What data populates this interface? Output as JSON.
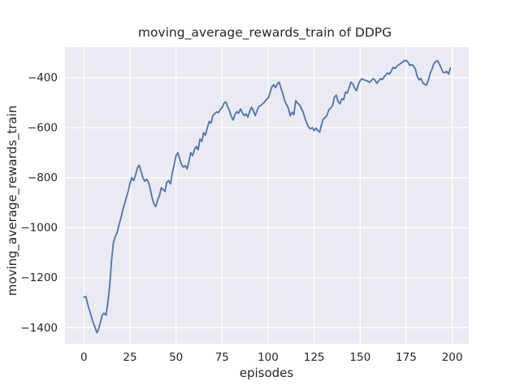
{
  "figure": {
    "title": "moving_average_rewards_train of DDPG",
    "xlabel": "episodes",
    "ylabel": "moving_average_rewards_train"
  },
  "colors": {
    "line": "#4c72b0",
    "plot_background": "#eaeaf2",
    "grid": "#ffffff",
    "text": "#262626",
    "figure_background": "#ffffff"
  },
  "chart_data": {
    "type": "line",
    "title": "moving_average_rewards_train of DDPG",
    "xlabel": "episodes",
    "ylabel": "moving_average_rewards_train",
    "grid": true,
    "legend": "none",
    "style": "seaborn-darkgrid",
    "x_ticks": [
      0,
      25,
      50,
      75,
      100,
      125,
      150,
      175,
      200
    ],
    "y_ticks": [
      -400,
      -600,
      -800,
      -1000,
      -1200,
      -1400
    ],
    "xlim": [
      -10.3,
      209.0
    ],
    "ylim": [
      -1464,
      -278
    ],
    "series": [
      {
        "name": "moving_average_rewards_train",
        "x_start": 0,
        "x_step": 1,
        "values": [
          -1278,
          -1275,
          -1305,
          -1330,
          -1355,
          -1380,
          -1398,
          -1420,
          -1405,
          -1376,
          -1348,
          -1342,
          -1350,
          -1300,
          -1230,
          -1130,
          -1060,
          -1035,
          -1020,
          -990,
          -963,
          -932,
          -905,
          -880,
          -855,
          -822,
          -800,
          -812,
          -790,
          -762,
          -750,
          -775,
          -800,
          -815,
          -806,
          -818,
          -845,
          -880,
          -905,
          -916,
          -890,
          -872,
          -840,
          -848,
          -855,
          -818,
          -812,
          -825,
          -780,
          -748,
          -712,
          -700,
          -725,
          -748,
          -758,
          -752,
          -765,
          -735,
          -700,
          -712,
          -688,
          -675,
          -688,
          -646,
          -655,
          -620,
          -630,
          -600,
          -575,
          -582,
          -552,
          -545,
          -537,
          -540,
          -528,
          -520,
          -502,
          -497,
          -515,
          -532,
          -555,
          -570,
          -548,
          -536,
          -542,
          -525,
          -540,
          -552,
          -545,
          -558,
          -535,
          -518,
          -532,
          -552,
          -532,
          -515,
          -512,
          -505,
          -498,
          -488,
          -482,
          -462,
          -438,
          -428,
          -440,
          -425,
          -418,
          -442,
          -465,
          -492,
          -508,
          -522,
          -552,
          -538,
          -548,
          -492,
          -502,
          -508,
          -522,
          -538,
          -562,
          -582,
          -598,
          -605,
          -600,
          -612,
          -602,
          -612,
          -618,
          -588,
          -565,
          -560,
          -550,
          -528,
          -522,
          -512,
          -478,
          -470,
          -495,
          -505,
          -485,
          -488,
          -458,
          -462,
          -440,
          -418,
          -425,
          -442,
          -452,
          -428,
          -412,
          -404,
          -409,
          -411,
          -414,
          -419,
          -412,
          -404,
          -409,
          -423,
          -414,
          -404,
          -408,
          -397,
          -389,
          -381,
          -386,
          -371,
          -359,
          -363,
          -354,
          -349,
          -343,
          -338,
          -333,
          -331,
          -339,
          -351,
          -348,
          -354,
          -366,
          -396,
          -409,
          -403,
          -421,
          -427,
          -430,
          -411,
          -383,
          -366,
          -344,
          -336,
          -332,
          -345,
          -362,
          -379,
          -380,
          -375,
          -386,
          -362
        ]
      }
    ]
  }
}
